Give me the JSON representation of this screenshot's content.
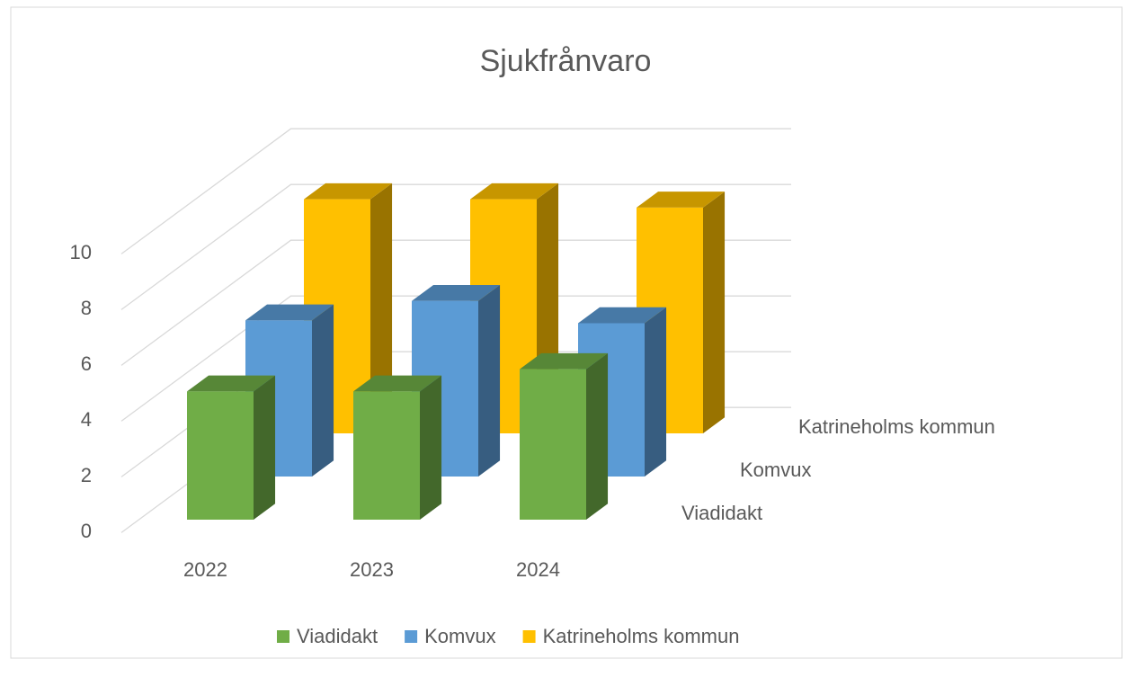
{
  "chart_data": {
    "type": "bar3d",
    "title": "Sjukfrånvaro",
    "categories": [
      "2022",
      "2023",
      "2024"
    ],
    "series": [
      {
        "name": "Viadidakt",
        "color": "#70ad47",
        "values": [
          4.6,
          4.6,
          5.4
        ]
      },
      {
        "name": "Komvux",
        "color": "#5b9bd5",
        "values": [
          5.6,
          6.3,
          5.5
        ]
      },
      {
        "name": "Katrineholms kommun",
        "color": "#ffc000",
        "values": [
          8.4,
          8.4,
          8.1
        ]
      }
    ],
    "ylim": [
      0,
      10
    ],
    "yticks": [
      0,
      2,
      4,
      6,
      8,
      10
    ],
    "grid": true,
    "legend": "bottom"
  }
}
